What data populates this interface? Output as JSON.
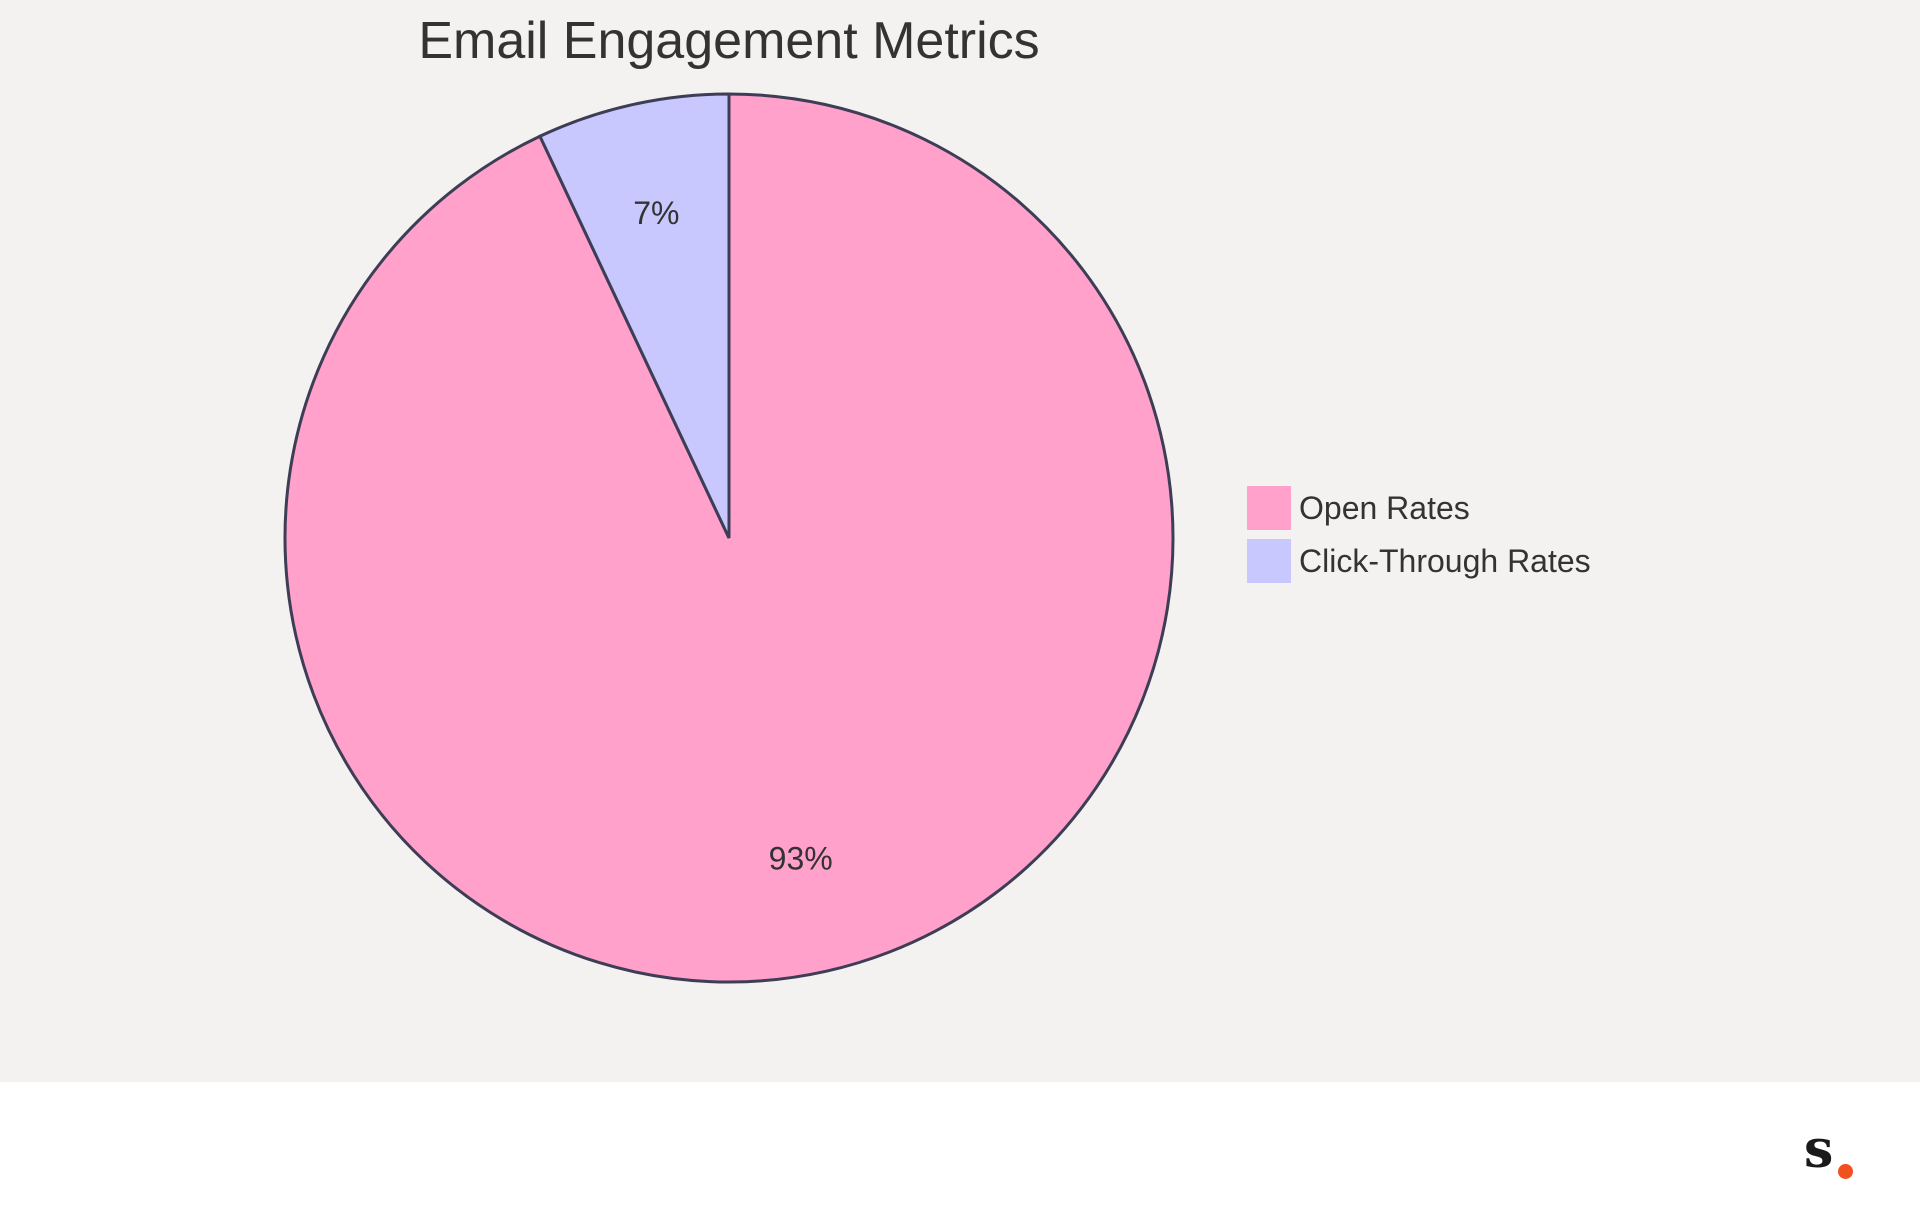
{
  "chart_data": {
    "type": "pie",
    "title": "Email Engagement Metrics",
    "slices": [
      {
        "label": "Open Rates",
        "value": 93,
        "display": "93%",
        "color": "#ffa1cb"
      },
      {
        "label": "Click-Through Rates",
        "value": 7,
        "display": "7%",
        "color": "#c8c8ff"
      }
    ],
    "legend_position": "right",
    "start_angle": "12 o'clock",
    "direction": "clockwise",
    "stroke_color": "#3d3d55",
    "background": "#f3f2f0"
  },
  "brand": {
    "logo_icon": "s-dot-logo-icon",
    "dot_color": "#f0511e"
  }
}
